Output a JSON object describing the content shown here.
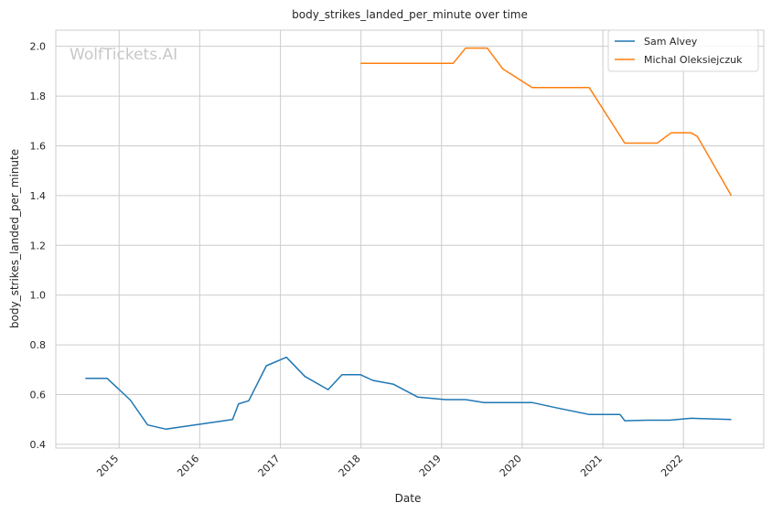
{
  "chart_data": {
    "type": "line",
    "title": "body_strikes_landed_per_minute over time",
    "xlabel": "Date",
    "ylabel": "body_strikes_landed_per_minute",
    "watermark": "WolfTickets.AI",
    "xlim": [
      "2014-03-20",
      "2022-12-31"
    ],
    "ylim": [
      0.385,
      2.065
    ],
    "x_ticks": [
      "2015-01-01",
      "2016-01-01",
      "2017-01-01",
      "2018-01-01",
      "2019-01-01",
      "2020-01-01",
      "2021-01-01",
      "2022-01-01"
    ],
    "x_tick_labels": [
      "2015",
      "2016",
      "2017",
      "2018",
      "2019",
      "2020",
      "2021",
      "2022"
    ],
    "y_ticks": [
      0.4,
      0.6,
      0.8,
      1.0,
      1.2,
      1.4,
      1.6,
      1.8,
      2.0
    ],
    "y_tick_labels": [
      "0.4",
      "0.6",
      "0.8",
      "1.0",
      "1.2",
      "1.4",
      "1.6",
      "1.8",
      "2.0"
    ],
    "grid": true,
    "legend_position": "top-right",
    "colors": {
      "grid": "#cccccc",
      "axes": "#cccccc"
    },
    "series": [
      {
        "name": "Sam Alvey",
        "color": "#1f77b4",
        "points": [
          [
            "2014-08-01",
            0.665
          ],
          [
            "2014-11-08",
            0.665
          ],
          [
            "2015-02-21",
            0.578
          ],
          [
            "2015-05-10",
            0.478
          ],
          [
            "2015-08-01",
            0.461
          ],
          [
            "2016-05-29",
            0.5
          ],
          [
            "2016-06-25",
            0.563
          ],
          [
            "2016-08-10",
            0.575
          ],
          [
            "2016-10-29",
            0.716
          ],
          [
            "2017-01-28",
            0.75
          ],
          [
            "2017-04-22",
            0.673
          ],
          [
            "2017-08-05",
            0.62
          ],
          [
            "2017-10-07",
            0.68
          ],
          [
            "2017-12-30",
            0.68
          ],
          [
            "2018-02-24",
            0.657
          ],
          [
            "2018-05-27",
            0.642
          ],
          [
            "2018-09-15",
            0.59
          ],
          [
            "2019-01-19",
            0.58
          ],
          [
            "2019-04-20",
            0.58
          ],
          [
            "2019-07-13",
            0.568
          ],
          [
            "2020-02-15",
            0.568
          ],
          [
            "2020-05-30",
            0.548
          ],
          [
            "2020-10-31",
            0.52
          ],
          [
            "2021-03-20",
            0.52
          ],
          [
            "2021-04-10",
            0.495
          ],
          [
            "2021-07-24",
            0.497
          ],
          [
            "2021-10-30",
            0.497
          ],
          [
            "2022-02-05",
            0.505
          ],
          [
            "2022-08-06",
            0.5
          ]
        ]
      },
      {
        "name": "Michal Oleksiejczuk",
        "color": "#ff7f0e",
        "points": [
          [
            "2017-12-30",
            1.932
          ],
          [
            "2019-02-23",
            1.932
          ],
          [
            "2019-04-20",
            1.993
          ],
          [
            "2019-07-27",
            1.993
          ],
          [
            "2019-10-05",
            1.91
          ],
          [
            "2020-02-15",
            1.834
          ],
          [
            "2020-10-31",
            1.834
          ],
          [
            "2021-04-10",
            1.611
          ],
          [
            "2021-09-04",
            1.611
          ],
          [
            "2021-11-06",
            1.652
          ],
          [
            "2022-02-05",
            1.652
          ],
          [
            "2022-03-05",
            1.638
          ],
          [
            "2022-08-06",
            1.4
          ]
        ]
      }
    ]
  }
}
